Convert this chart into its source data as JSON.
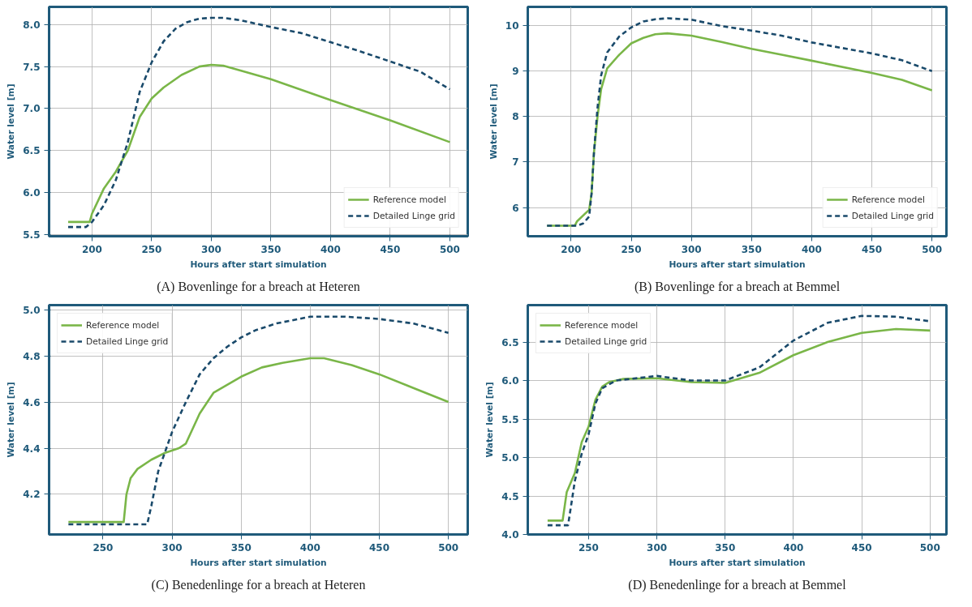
{
  "chart_data": [
    {
      "type": "line",
      "title": "(A) Bovenlinge for a breach at Heteren",
      "xlabel": "Hours after start simulation",
      "ylabel": "Water level [m]",
      "xlim": [
        164,
        515
      ],
      "ylim": [
        5.48,
        8.21
      ],
      "xticks": [
        200,
        250,
        300,
        350,
        400,
        450,
        500
      ],
      "yticks": [
        5.5,
        {
          "value": 6,
          "label": "6.0"
        },
        6.5,
        {
          "value": 7,
          "label": "7.0"
        },
        7.5,
        {
          "value": 8,
          "label": "8.0"
        }
      ],
      "grid": true,
      "legend": "bottom right",
      "series": [
        {
          "name": "Reference model",
          "color": "#7ab648",
          "line_style": "solid",
          "x": [
            180,
            198,
            200,
            210,
            220,
            230,
            240,
            250,
            260,
            275,
            290,
            300,
            310,
            325,
            350,
            400,
            450,
            500
          ],
          "values": [
            5.65,
            5.65,
            5.75,
            6.05,
            6.25,
            6.5,
            6.9,
            7.12,
            7.25,
            7.4,
            7.5,
            7.52,
            7.51,
            7.45,
            7.35,
            7.1,
            6.86,
            6.6
          ]
        },
        {
          "name": "Detailed Linge grid",
          "color": "#1a4a6b",
          "line_style": "dashed",
          "x": [
            180,
            195,
            200,
            210,
            220,
            230,
            240,
            250,
            260,
            270,
            280,
            290,
            300,
            310,
            325,
            350,
            375,
            400,
            425,
            450,
            475,
            500
          ],
          "values": [
            5.59,
            5.59,
            5.65,
            5.85,
            6.15,
            6.6,
            7.2,
            7.55,
            7.8,
            7.95,
            8.03,
            8.07,
            8.08,
            8.08,
            8.05,
            7.97,
            7.9,
            7.79,
            7.68,
            7.56,
            7.44,
            7.23
          ]
        }
      ]
    },
    {
      "type": "line",
      "title": "(B) Bovenlinge for a breach at Bemmel",
      "xlabel": "Hours after start simulation",
      "ylabel": "Water level [m]",
      "xlim": [
        164,
        512
      ],
      "ylim": [
        5.37,
        10.4
      ],
      "xticks": [
        200,
        250,
        300,
        350,
        400,
        450,
        500
      ],
      "yticks": [
        6,
        7,
        8,
        9,
        10
      ],
      "grid": true,
      "legend": "bottom right",
      "series": [
        {
          "name": "Reference model",
          "color": "#7ab648",
          "line_style": "solid",
          "x": [
            180,
            203,
            205,
            215,
            217,
            219,
            222,
            225,
            230,
            240,
            250,
            260,
            270,
            280,
            300,
            325,
            350,
            375,
            400,
            450,
            475,
            500
          ],
          "values": [
            5.6,
            5.6,
            5.7,
            5.95,
            6.3,
            7.2,
            8.0,
            8.6,
            9.05,
            9.35,
            9.6,
            9.72,
            9.8,
            9.82,
            9.77,
            9.63,
            9.48,
            9.35,
            9.22,
            8.95,
            8.8,
            8.57
          ]
        },
        {
          "name": "Detailed Linge grid",
          "color": "#1a4a6b",
          "line_style": "dashed",
          "x": [
            180,
            205,
            210,
            215,
            217,
            219,
            222,
            225,
            230,
            240,
            250,
            260,
            270,
            280,
            300,
            325,
            350,
            375,
            400,
            425,
            450,
            475,
            500
          ],
          "values": [
            5.6,
            5.6,
            5.65,
            5.8,
            6.3,
            7.2,
            8.2,
            8.9,
            9.4,
            9.75,
            9.95,
            10.08,
            10.13,
            10.15,
            10.12,
            9.98,
            9.88,
            9.77,
            9.62,
            9.5,
            9.38,
            9.23,
            8.99
          ]
        }
      ]
    },
    {
      "type": "line",
      "title": "(C) Benedenlinge for a breach at Heteren",
      "xlabel": "Hours after start simulation",
      "ylabel": "Water level [m]",
      "xlim": [
        211,
        514
      ],
      "ylim": [
        4.026,
        5.02
      ],
      "xticks": [
        250,
        300,
        350,
        400,
        450,
        500
      ],
      "yticks": [
        4.2,
        4.4,
        4.6,
        4.8,
        {
          "value": 5,
          "label": "5.0"
        }
      ],
      "grid": true,
      "legend": "top left",
      "series": [
        {
          "name": "Reference model",
          "color": "#7ab648",
          "line_style": "solid",
          "x": [
            225,
            265,
            267,
            270,
            275,
            285,
            295,
            305,
            310,
            320,
            330,
            350,
            365,
            380,
            400,
            410,
            430,
            450,
            475,
            500
          ],
          "values": [
            4.08,
            4.08,
            4.2,
            4.27,
            4.31,
            4.35,
            4.38,
            4.4,
            4.42,
            4.55,
            4.64,
            4.71,
            4.75,
            4.77,
            4.79,
            4.79,
            4.76,
            4.72,
            4.66,
            4.6
          ]
        },
        {
          "name": "Detailed Linge grid",
          "color": "#1a4a6b",
          "line_style": "dashed",
          "x": [
            225,
            282,
            285,
            290,
            300,
            310,
            320,
            330,
            340,
            350,
            360,
            375,
            400,
            425,
            450,
            475,
            500
          ],
          "values": [
            4.07,
            4.07,
            4.15,
            4.3,
            4.47,
            4.6,
            4.72,
            4.79,
            4.84,
            4.88,
            4.91,
            4.94,
            4.97,
            4.97,
            4.96,
            4.94,
            4.9
          ]
        }
      ]
    },
    {
      "type": "line",
      "title": "(D) Benedenlinge for a breach at Bemmel",
      "xlabel": "Hours after start simulation",
      "ylabel": "Water level [m]",
      "xlim": [
        205.5,
        512
      ],
      "ylim": [
        4.0,
        6.98
      ],
      "xticks": [
        250,
        300,
        350,
        400,
        450,
        500
      ],
      "yticks": [
        {
          "value": 4,
          "label": "4.0"
        },
        4.5,
        {
          "value": 5,
          "label": "5.0"
        },
        5.5,
        {
          "value": 6,
          "label": "6.0"
        },
        6.5
      ],
      "grid": true,
      "legend": "top left",
      "series": [
        {
          "name": "Reference model",
          "color": "#7ab648",
          "line_style": "solid",
          "x": [
            220,
            231,
            234,
            240,
            245,
            250,
            255,
            260,
            265,
            275,
            300,
            325,
            350,
            375,
            400,
            425,
            450,
            475,
            500
          ],
          "values": [
            4.18,
            4.18,
            4.55,
            4.8,
            5.2,
            5.4,
            5.75,
            5.92,
            5.98,
            6.02,
            6.03,
            5.98,
            5.97,
            6.1,
            6.33,
            6.5,
            6.62,
            6.67,
            6.65
          ]
        },
        {
          "name": "Detailed Linge grid",
          "color": "#1a4a6b",
          "line_style": "dashed",
          "x": [
            220,
            235,
            240,
            245,
            250,
            255,
            260,
            270,
            300,
            325,
            350,
            375,
            400,
            425,
            450,
            475,
            500
          ],
          "values": [
            4.12,
            4.12,
            4.7,
            5.05,
            5.3,
            5.7,
            5.9,
            6.0,
            6.06,
            6.0,
            6.0,
            6.17,
            6.52,
            6.75,
            6.84,
            6.83,
            6.77
          ]
        }
      ]
    }
  ]
}
